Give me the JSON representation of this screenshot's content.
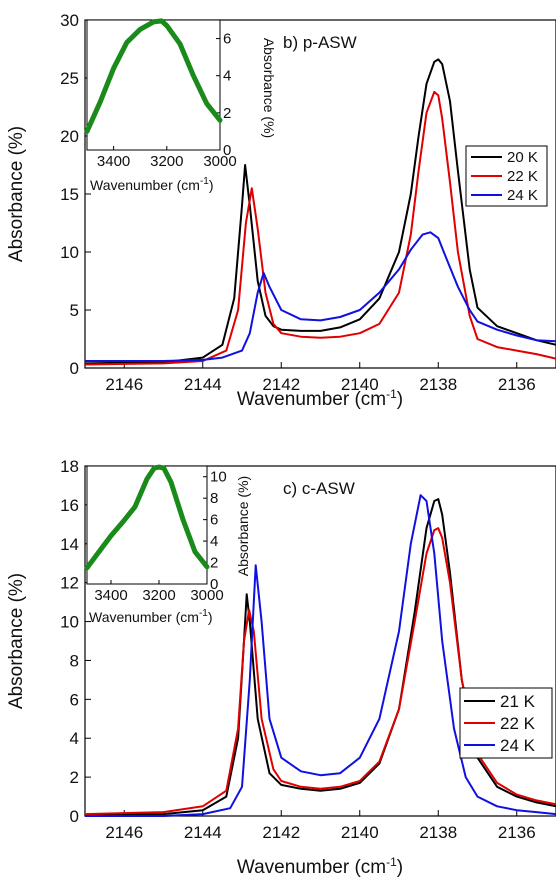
{
  "chart_data": [
    {
      "type": "line",
      "panel_label": "b) p-ASW",
      "xlabel": "Wavenumber (cm",
      "xlabel_sup": "-1",
      "xlabel_close": ")",
      "ylabel": "Absorbance (%)",
      "xlim": [
        2147,
        2135
      ],
      "ylim": [
        0,
        30
      ],
      "xticks": [
        2146,
        2144,
        2142,
        2140,
        2138,
        2136
      ],
      "yticks": [
        0,
        5,
        10,
        15,
        20,
        25,
        30
      ],
      "legend_position": "right",
      "series": [
        {
          "name": "20 K",
          "color": "#000000",
          "x": [
            2147,
            2145,
            2144,
            2143.5,
            2143.2,
            2143.0,
            2142.92,
            2142.8,
            2142.6,
            2142.4,
            2142.2,
            2142.0,
            2141.5,
            2141.0,
            2140.5,
            2140.0,
            2139.5,
            2139.0,
            2138.7,
            2138.5,
            2138.3,
            2138.1,
            2138.0,
            2137.9,
            2137.7,
            2137.5,
            2137.2,
            2137.0,
            2136.5,
            2136.0,
            2135.5,
            2135.0
          ],
          "y": [
            0.4,
            0.5,
            0.9,
            2.0,
            6.0,
            14.0,
            17.5,
            14.0,
            7.5,
            4.5,
            3.6,
            3.3,
            3.2,
            3.2,
            3.5,
            4.2,
            6.0,
            10.0,
            15.0,
            20.0,
            24.5,
            26.4,
            26.6,
            26.2,
            23.0,
            17.0,
            8.5,
            5.2,
            3.6,
            3.0,
            2.4,
            2.0
          ]
        },
        {
          "name": "22 K",
          "color": "#e00000",
          "x": [
            2147,
            2145,
            2144,
            2143.4,
            2143.1,
            2142.9,
            2142.75,
            2142.6,
            2142.4,
            2142.2,
            2142.0,
            2141.5,
            2141.0,
            2140.5,
            2140.0,
            2139.5,
            2139.0,
            2138.7,
            2138.5,
            2138.3,
            2138.1,
            2138.0,
            2137.9,
            2137.7,
            2137.5,
            2137.2,
            2137.0,
            2136.5,
            2136.0,
            2135.5,
            2135.0
          ],
          "y": [
            0.3,
            0.4,
            0.6,
            1.5,
            5.0,
            12.5,
            15.5,
            12.0,
            6.5,
            3.8,
            3.0,
            2.7,
            2.6,
            2.7,
            3.0,
            3.8,
            6.5,
            11.5,
            17.0,
            22.0,
            23.8,
            23.5,
            21.5,
            16.0,
            10.0,
            4.5,
            2.5,
            1.8,
            1.5,
            1.2,
            0.8
          ]
        },
        {
          "name": "24 K",
          "color": "#1010e0",
          "x": [
            2147,
            2145,
            2144,
            2143.5,
            2143.0,
            2142.8,
            2142.6,
            2142.45,
            2142.3,
            2142.0,
            2141.5,
            2141.0,
            2140.5,
            2140.0,
            2139.5,
            2139.0,
            2138.7,
            2138.4,
            2138.2,
            2138.0,
            2137.8,
            2137.5,
            2137.2,
            2137.0,
            2136.5,
            2136.0,
            2135.5,
            2135.0
          ],
          "y": [
            0.6,
            0.6,
            0.7,
            0.9,
            1.5,
            3.0,
            6.5,
            8.2,
            7.0,
            5.0,
            4.2,
            4.1,
            4.4,
            5.0,
            6.5,
            8.5,
            10.2,
            11.5,
            11.7,
            11.2,
            9.5,
            7.0,
            5.0,
            4.0,
            3.3,
            2.8,
            2.4,
            2.3
          ]
        }
      ],
      "inset": {
        "xlabel": "Wavenumber (cm",
        "xlabel_sup": "-1",
        "xlabel_close": ")",
        "ylabel": "Absorbance (%)",
        "xlim": [
          3500,
          3000
        ],
        "ylim": [
          0,
          7
        ],
        "xticks": [
          3400,
          3200,
          3000
        ],
        "yticks": [
          0,
          2,
          4,
          6
        ],
        "color": "#1a8a1a",
        "x": [
          3500,
          3450,
          3400,
          3350,
          3300,
          3250,
          3220,
          3200,
          3150,
          3100,
          3050,
          3000
        ],
        "y": [
          1.0,
          2.6,
          4.4,
          5.8,
          6.5,
          6.9,
          6.95,
          6.7,
          5.7,
          4.0,
          2.5,
          1.6
        ]
      }
    },
    {
      "type": "line",
      "panel_label": "c) c-ASW",
      "xlabel": "Wavenumber (cm",
      "xlabel_sup": "-1",
      "xlabel_close": ")",
      "ylabel": "Absorbance (%)",
      "xlim": [
        2147,
        2135
      ],
      "ylim": [
        0,
        18
      ],
      "xticks": [
        2146,
        2144,
        2142,
        2140,
        2138,
        2136
      ],
      "yticks": [
        0,
        2,
        4,
        6,
        8,
        10,
        12,
        14,
        16,
        18
      ],
      "legend_position": "right",
      "series": [
        {
          "name": "21 K",
          "color": "#000000",
          "x": [
            2147,
            2145,
            2144,
            2143.4,
            2143.1,
            2142.95,
            2142.88,
            2142.8,
            2142.6,
            2142.3,
            2142.0,
            2141.5,
            2141.0,
            2140.5,
            2140.0,
            2139.5,
            2139.0,
            2138.6,
            2138.3,
            2138.1,
            2138.0,
            2137.9,
            2137.7,
            2137.4,
            2137.0,
            2136.5,
            2136.0,
            2135.5,
            2135.0
          ],
          "y": [
            0.05,
            0.1,
            0.3,
            1.0,
            4.0,
            9.0,
            11.4,
            10.0,
            5.0,
            2.2,
            1.6,
            1.4,
            1.3,
            1.4,
            1.7,
            2.7,
            5.5,
            10.5,
            14.8,
            16.2,
            16.3,
            15.5,
            12.5,
            7.0,
            3.0,
            1.5,
            1.0,
            0.7,
            0.5
          ]
        },
        {
          "name": "22 K",
          "color": "#e00000",
          "x": [
            2147,
            2145,
            2144,
            2143.4,
            2143.1,
            2142.95,
            2142.82,
            2142.7,
            2142.5,
            2142.2,
            2142.0,
            2141.5,
            2141.0,
            2140.5,
            2140.0,
            2139.5,
            2139.0,
            2138.6,
            2138.3,
            2138.1,
            2138.0,
            2137.9,
            2137.7,
            2137.4,
            2137.0,
            2136.5,
            2136.0,
            2135.5,
            2135.0
          ],
          "y": [
            0.1,
            0.2,
            0.5,
            1.3,
            4.5,
            9.0,
            10.6,
            9.5,
            5.0,
            2.4,
            1.8,
            1.5,
            1.4,
            1.5,
            1.8,
            2.8,
            5.5,
            10.0,
            13.5,
            14.7,
            14.8,
            14.3,
            12.0,
            7.0,
            3.2,
            1.7,
            1.1,
            0.8,
            0.6
          ]
        },
        {
          "name": "24 K",
          "color": "#1010e0",
          "x": [
            2147,
            2145,
            2144,
            2143.3,
            2143.0,
            2142.8,
            2142.65,
            2142.5,
            2142.3,
            2142.0,
            2141.5,
            2141.0,
            2140.5,
            2140.0,
            2139.5,
            2139.0,
            2138.7,
            2138.45,
            2138.3,
            2138.1,
            2137.9,
            2137.6,
            2137.3,
            2137.0,
            2136.5,
            2136.0,
            2135.5,
            2135.0
          ],
          "y": [
            0.0,
            0.0,
            0.1,
            0.4,
            1.5,
            7.0,
            12.9,
            10.0,
            5.0,
            3.0,
            2.3,
            2.1,
            2.2,
            3.0,
            5.0,
            9.5,
            14.0,
            16.5,
            16.2,
            13.5,
            9.0,
            4.5,
            2.0,
            1.0,
            0.5,
            0.3,
            0.2,
            0.1
          ]
        }
      ],
      "inset": {
        "xlabel": "Wavenumber (cm",
        "xlabel_sup": "-1",
        "xlabel_close": ")",
        "ylabel": "Absorbance (%)",
        "xlim": [
          3500,
          3000
        ],
        "ylim": [
          0,
          11
        ],
        "xticks": [
          3400,
          3200,
          3000
        ],
        "yticks": [
          0,
          2,
          4,
          6,
          8,
          10
        ],
        "color": "#1a8a1a",
        "x": [
          3500,
          3450,
          3400,
          3350,
          3300,
          3250,
          3220,
          3200,
          3180,
          3150,
          3100,
          3050,
          3000
        ],
        "y": [
          1.5,
          3.0,
          4.5,
          5.8,
          7.2,
          9.8,
          10.8,
          10.9,
          10.8,
          9.5,
          6.0,
          3.0,
          1.6
        ]
      }
    }
  ]
}
